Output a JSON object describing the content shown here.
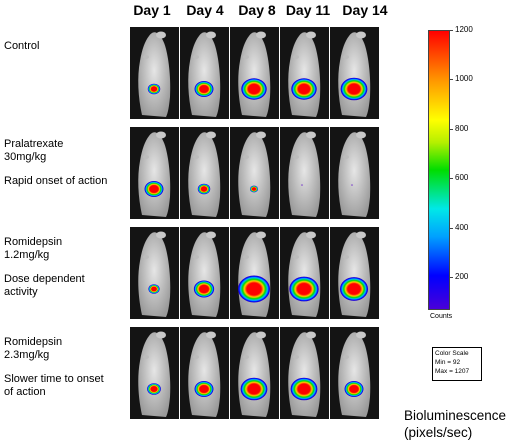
{
  "days": [
    "Day 1",
    "Day 4",
    "Day 8",
    "Day 11",
    "Day 14"
  ],
  "rows": [
    {
      "lines": [
        "Control"
      ]
    },
    {
      "lines": [
        "Pralatrexate",
        "30mg/kg",
        "",
        "Rapid onset of action"
      ]
    },
    {
      "lines": [
        "Romidepsin",
        "1.2mg/kg",
        "",
        "Dose dependent",
        "activity"
      ]
    },
    {
      "lines": [
        "Romidepsin",
        "2.3mg/kg",
        "",
        "Slower time to onset",
        "of action"
      ]
    }
  ],
  "colorbar": {
    "ticks": [
      "1200",
      "1000",
      "800",
      "600",
      "400",
      "200"
    ],
    "tick_values": [
      1200,
      1000,
      800,
      600,
      400,
      200
    ],
    "range": [
      75,
      1200
    ],
    "unit_label": "Counts",
    "colors": [
      "#4a00d9",
      "#0000ff",
      "#00a0ff",
      "#00e8e8",
      "#00dd00",
      "#b6f000",
      "#ffff00",
      "#ff9900",
      "#ff0000"
    ]
  },
  "color_scale_box": {
    "title": "Color Scale",
    "min": "Min = 92",
    "max": "Max = 1207"
  },
  "footer_label": [
    "Bioluminescence",
    "(pixels/sec)"
  ],
  "signal_levels": [
    [
      0.25,
      0.5,
      0.75,
      0.75,
      0.8
    ],
    [
      0.5,
      0.25,
      0.08,
      0.0,
      0.0
    ],
    [
      0.2,
      0.55,
      1.0,
      0.9,
      0.85
    ],
    [
      0.3,
      0.5,
      0.8,
      0.8,
      0.5
    ]
  ]
}
